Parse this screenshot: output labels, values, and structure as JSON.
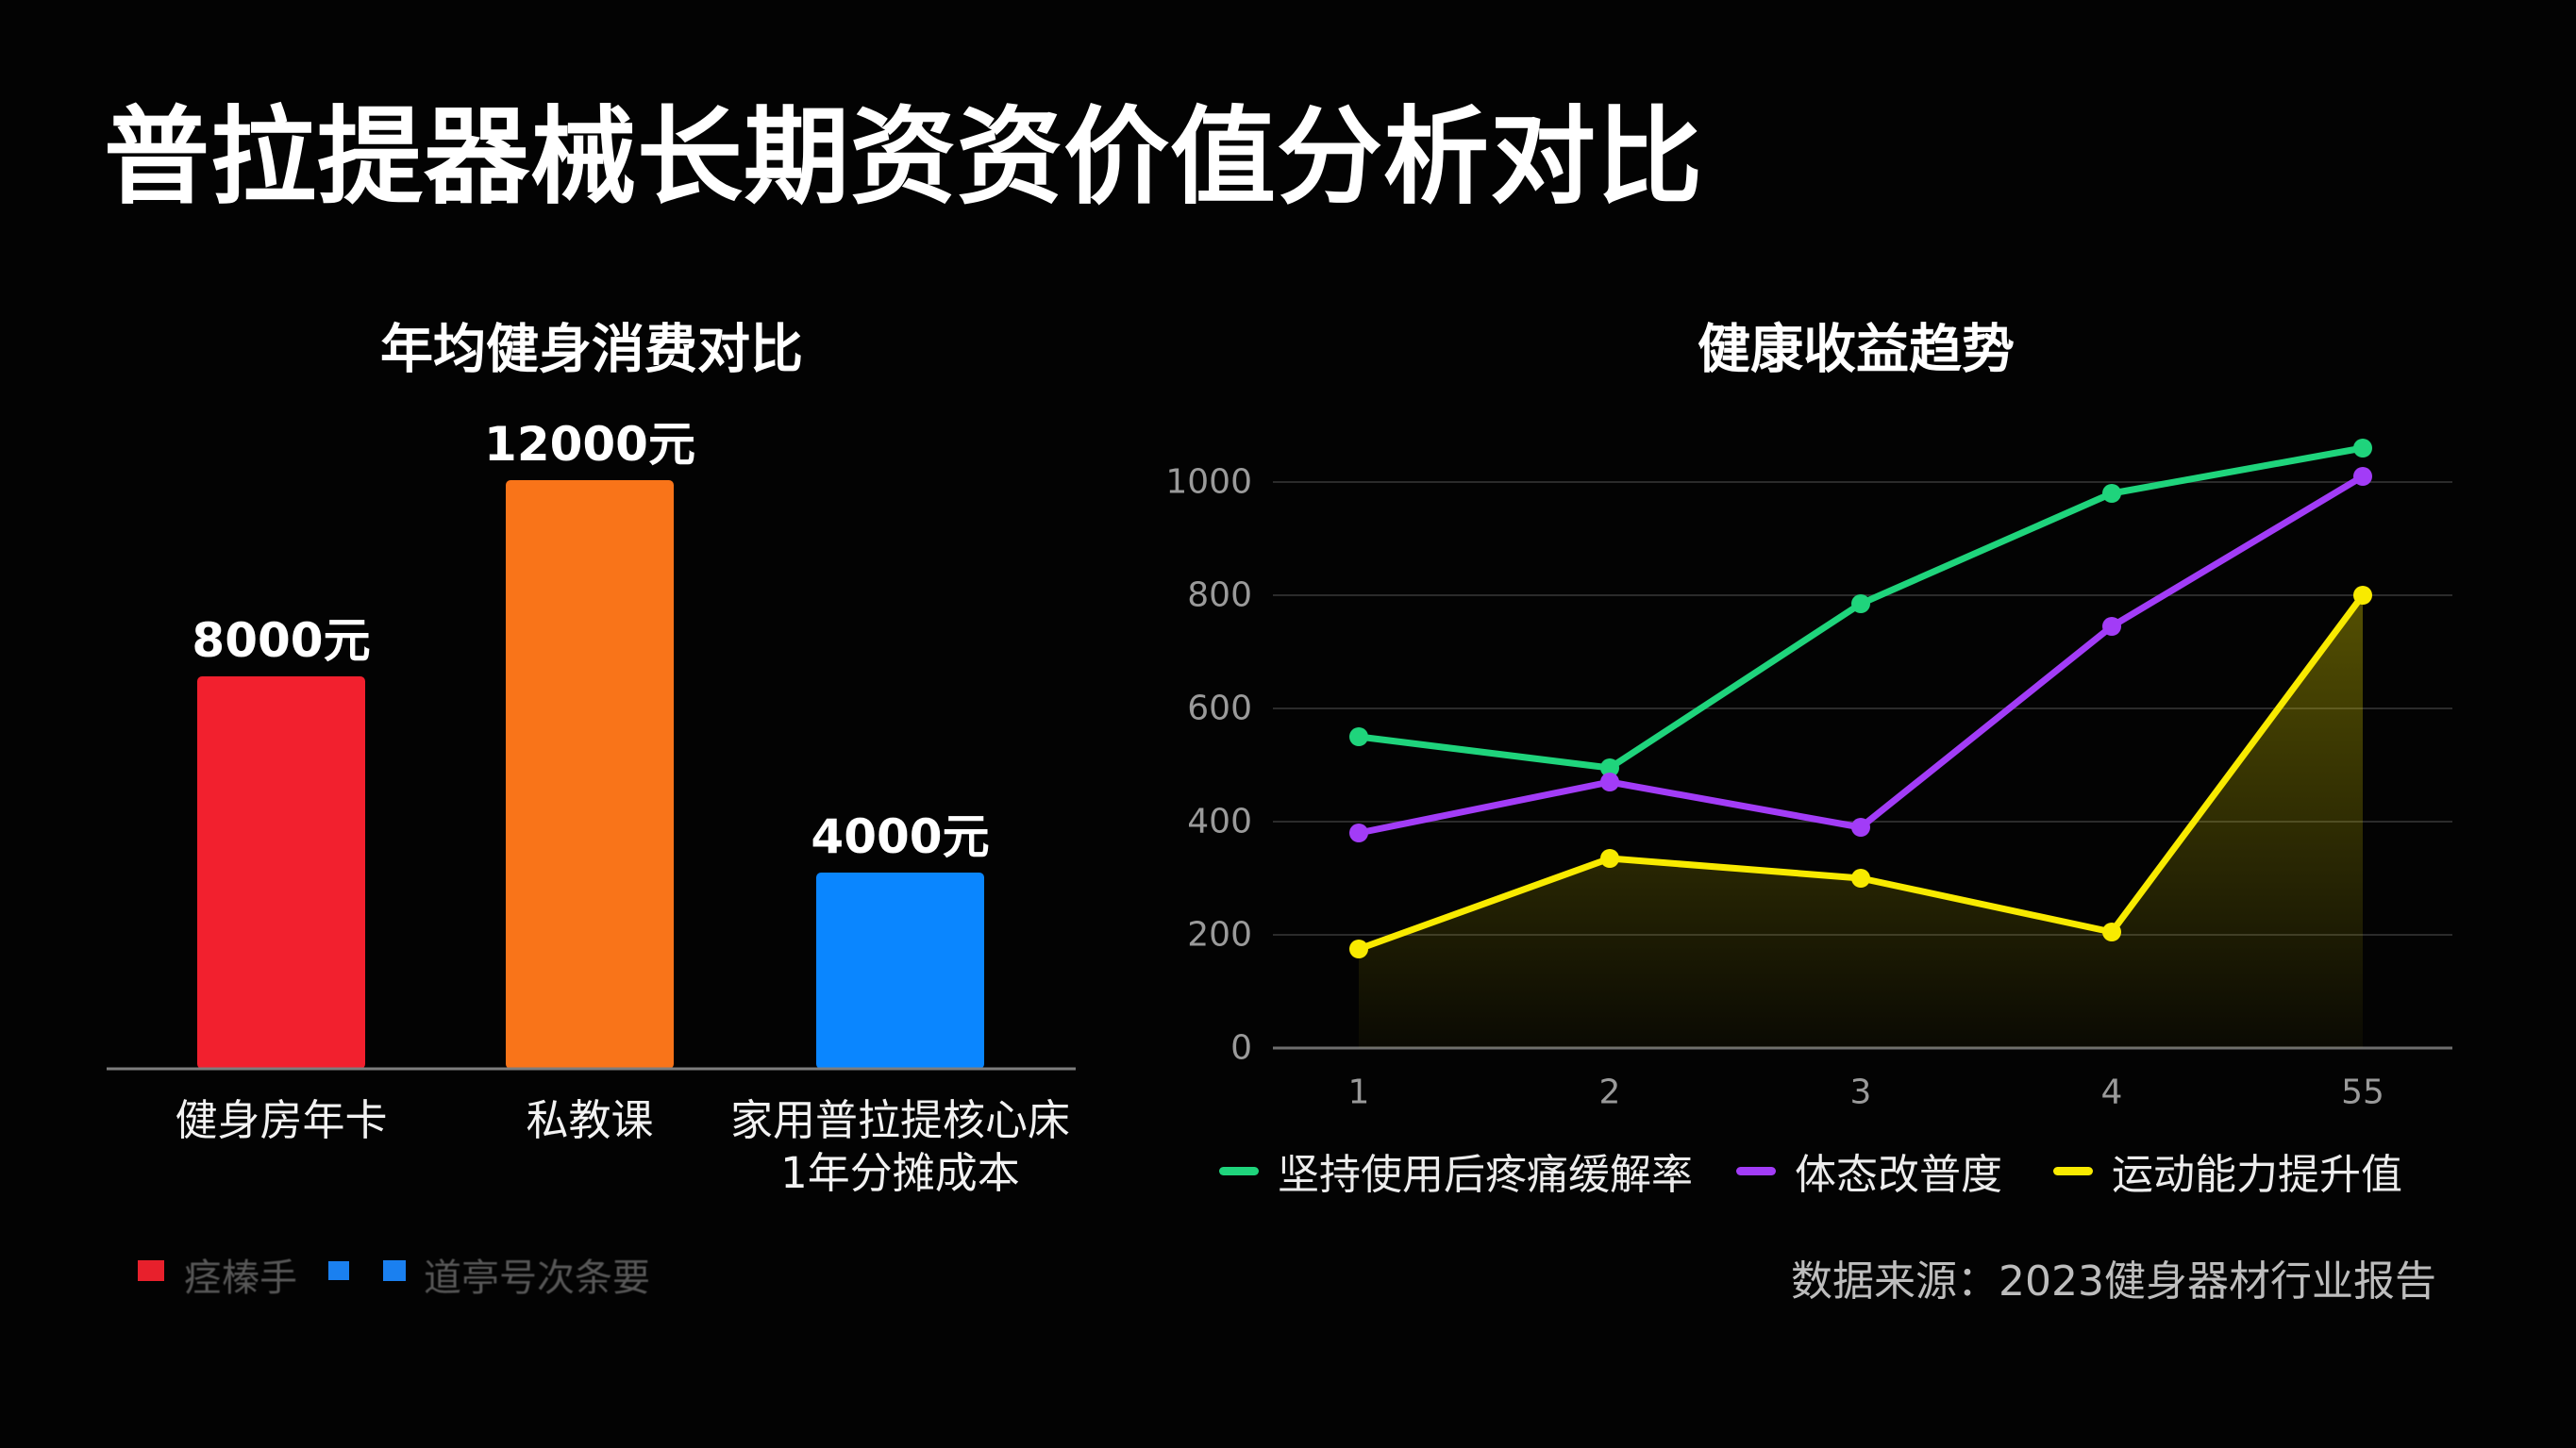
{
  "title": "普拉提器械长期资资价值分析对比",
  "chart_data": [
    {
      "type": "bar",
      "title": "年均健身消费对比",
      "categories": [
        "健身房年卡",
        "私教课",
        "家用普拉提核心床\n1年分摊成本"
      ],
      "values": [
        8000,
        12000,
        4000
      ],
      "value_labels": [
        "8000元",
        "12000元",
        "4000元"
      ],
      "colors": [
        "#f2202e",
        "#f97419",
        "#0a86ff"
      ],
      "grid": false,
      "legend_position": "bottom-left",
      "legend": [
        {
          "label": "痉榛手",
          "color": "#e8202c"
        },
        {
          "color": "#1a80f0"
        },
        {
          "label": "道亭号次条要",
          "color": "#1a80f0"
        }
      ]
    },
    {
      "type": "line",
      "title": "健康收益趋势",
      "x": [
        "1",
        "2",
        "3",
        "4",
        "55"
      ],
      "yticks": [
        0,
        200,
        400,
        600,
        800,
        1000
      ],
      "grid": true,
      "legend_position": "bottom",
      "series": [
        {
          "name": "坚持使用后疼痛缓解率",
          "values": [
            550,
            495,
            785,
            980,
            1060
          ],
          "color": "#1fd47c"
        },
        {
          "name": "体态改普度",
          "values": [
            380,
            470,
            390,
            745,
            1010
          ],
          "color": "#a23cf7"
        },
        {
          "name": "运动能力提升值",
          "values": [
            175,
            335,
            300,
            205,
            800
          ],
          "color": "#f8ea00",
          "area_fill": true
        }
      ],
      "source": "数据来源：2023健身器材行业报告"
    }
  ]
}
